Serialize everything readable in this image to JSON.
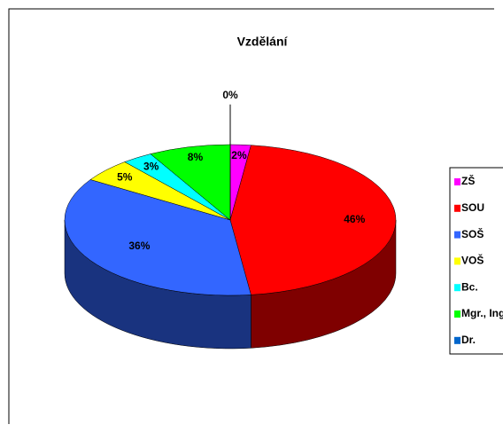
{
  "chart_data": {
    "type": "pie",
    "title": "Vzdělání",
    "categories": [
      "ZŠ",
      "SOU",
      "SOŠ",
      "VOŠ",
      "Bc.",
      "Mgr., Ing",
      "Dr."
    ],
    "values": [
      2,
      46,
      36,
      5,
      3,
      8,
      0
    ],
    "value_labels": [
      "2%",
      "46%",
      "36%",
      "5%",
      "3%",
      "8%",
      "0%"
    ],
    "colors": [
      "#ff00ff",
      "#ff0000",
      "#3366ff",
      "#ffff00",
      "#00ffff",
      "#00ff00",
      "#0066cc"
    ],
    "legend": "right"
  }
}
